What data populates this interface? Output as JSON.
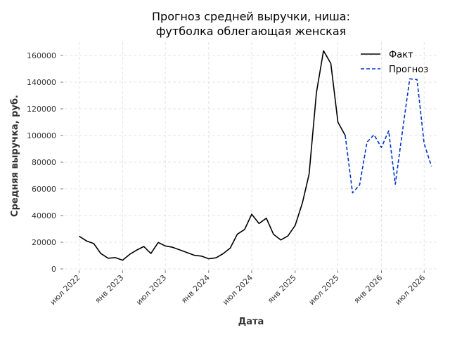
{
  "chart_data": {
    "type": "line",
    "title_lines": [
      "Прогноз средней выручки, ниша:",
      "футболка облегающая женская"
    ],
    "xlabel": "Дата",
    "ylabel": "Средняя выручка, руб.",
    "ylim": [
      0,
      170000
    ],
    "yticks": [
      0,
      20000,
      40000,
      60000,
      80000,
      100000,
      120000,
      140000,
      160000
    ],
    "ytick_labels": [
      "0",
      "20000",
      "40000",
      "60000",
      "80000",
      "100000",
      "120000",
      "140000",
      "160000"
    ],
    "xlim": [
      "2022-05-01",
      "2026-09-01"
    ],
    "xticks": [
      "2022-07-01",
      "2023-01-01",
      "2023-07-01",
      "2024-01-01",
      "2024-07-01",
      "2025-01-01",
      "2025-07-01",
      "2026-01-01",
      "2026-07-01"
    ],
    "xtick_labels": [
      "июл 2022",
      "янв 2023",
      "июл 2023",
      "янв 2024",
      "июл 2024",
      "янв 2025",
      "июл 2025",
      "янв 2026",
      "июл 2026"
    ],
    "grid": true,
    "legend_position": "top-right",
    "series": [
      {
        "name": "Факт",
        "color": "#000000",
        "style": "solid",
        "x": [
          "2022-07-01",
          "2022-08-01",
          "2022-09-01",
          "2022-10-01",
          "2022-11-01",
          "2022-12-01",
          "2023-01-01",
          "2023-02-01",
          "2023-03-01",
          "2023-04-01",
          "2023-05-01",
          "2023-06-01",
          "2023-07-01",
          "2023-08-01",
          "2023-09-01",
          "2023-10-01",
          "2023-11-01",
          "2023-12-01",
          "2024-01-01",
          "2024-02-01",
          "2024-03-01",
          "2024-04-01",
          "2024-05-01",
          "2024-06-01",
          "2024-07-01",
          "2024-08-01",
          "2024-09-01",
          "2024-10-01",
          "2024-11-01",
          "2024-12-01",
          "2025-01-01",
          "2025-02-01",
          "2025-03-01",
          "2025-04-01",
          "2025-05-01",
          "2025-06-01",
          "2025-07-01",
          "2025-08-01"
        ],
        "y": [
          24500,
          21000,
          19000,
          11500,
          8000,
          8500,
          6500,
          11000,
          14000,
          16800,
          11500,
          19800,
          17200,
          16200,
          14200,
          12200,
          10200,
          9600,
          7600,
          8300,
          11300,
          15600,
          26000,
          29600,
          41000,
          34000,
          38000,
          26000,
          21700,
          24700,
          32600,
          49700,
          71000,
          132000,
          163500,
          154000,
          110000,
          100000
        ]
      },
      {
        "name": "Прогноз",
        "color": "#0033cc",
        "style": "dashed",
        "x": [
          "2025-08-01",
          "2025-09-01",
          "2025-10-01",
          "2025-11-01",
          "2025-12-01",
          "2026-01-01",
          "2026-02-01",
          "2026-03-01",
          "2026-04-01",
          "2026-05-01",
          "2026-06-01",
          "2026-07-01",
          "2026-08-01"
        ],
        "y": [
          100000,
          57000,
          63000,
          95000,
          100500,
          91000,
          103500,
          63500,
          104000,
          142500,
          142000,
          94000,
          77000
        ]
      }
    ]
  }
}
